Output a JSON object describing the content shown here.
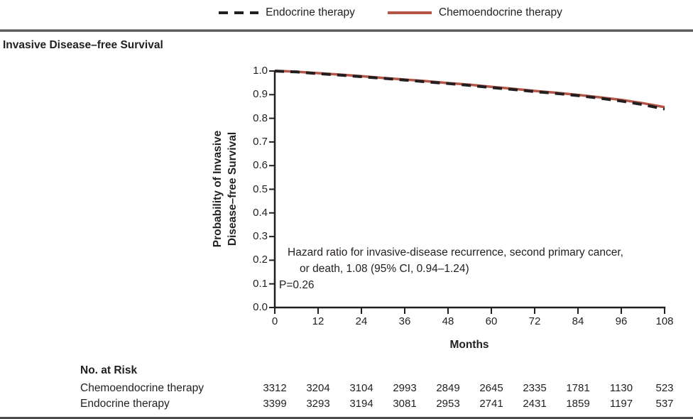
{
  "legend": {
    "items": [
      {
        "label": "Endocrine therapy",
        "style": "dashed",
        "color": "#231f20"
      },
      {
        "label": "Chemoendocrine therapy",
        "style": "solid",
        "color": "#b65648"
      }
    ]
  },
  "panel_title": "Invasive Disease–free Survival",
  "chart_data": {
    "type": "line",
    "title": "Invasive Disease–free Survival",
    "xlabel": "Months",
    "ylabel": "Probability of Invasive Disease–free Survival",
    "ylabel_lines": [
      "Probability of Invasive",
      "Disease–free Survival"
    ],
    "xlim": [
      0,
      108
    ],
    "ylim": [
      0.0,
      1.0
    ],
    "x_ticks": [
      0,
      12,
      24,
      36,
      48,
      60,
      72,
      84,
      96,
      108
    ],
    "y_ticks": [
      "1.0",
      "0.9",
      "0.8",
      "0.7",
      "0.6",
      "0.5",
      "0.4",
      "0.3",
      "0.2",
      "0.1",
      "0.0"
    ],
    "grid": false,
    "legend_position": "top",
    "series": [
      {
        "name": "Chemoendocrine therapy",
        "color": "#b65648",
        "style": "solid",
        "x": [
          0,
          3,
          6,
          12,
          18,
          24,
          30,
          36,
          42,
          48,
          54,
          60,
          66,
          72,
          78,
          84,
          90,
          96,
          102,
          108
        ],
        "values": [
          1.0,
          0.999,
          0.997,
          0.991,
          0.985,
          0.978,
          0.971,
          0.964,
          0.957,
          0.949,
          0.942,
          0.933,
          0.925,
          0.916,
          0.908,
          0.899,
          0.889,
          0.878,
          0.864,
          0.847
        ]
      },
      {
        "name": "Endocrine therapy",
        "color": "#231f20",
        "style": "dashed",
        "x": [
          0,
          3,
          6,
          12,
          18,
          24,
          30,
          36,
          42,
          48,
          54,
          60,
          66,
          72,
          78,
          84,
          90,
          96,
          102,
          108
        ],
        "values": [
          1.0,
          0.998,
          0.996,
          0.989,
          0.983,
          0.976,
          0.969,
          0.962,
          0.954,
          0.947,
          0.939,
          0.93,
          0.922,
          0.913,
          0.905,
          0.896,
          0.885,
          0.873,
          0.858,
          0.839
        ]
      }
    ],
    "annotation": {
      "line1": "Hazard ratio for invasive-disease recurrence, second primary cancer,",
      "line2": "or death, 1.08 (95% CI, 0.94–1.24)",
      "line3": "P=0.26"
    }
  },
  "risk_table": {
    "header": "No. at Risk",
    "rows": [
      {
        "label": "Chemoendocrine therapy",
        "values": [
          "3312",
          "3204",
          "3104",
          "2993",
          "2849",
          "2645",
          "2335",
          "1781",
          "1130",
          "523"
        ]
      },
      {
        "label": "Endocrine therapy",
        "values": [
          "3399",
          "3293",
          "3194",
          "3081",
          "2953",
          "2741",
          "2431",
          "1859",
          "1197",
          "537"
        ]
      }
    ]
  }
}
